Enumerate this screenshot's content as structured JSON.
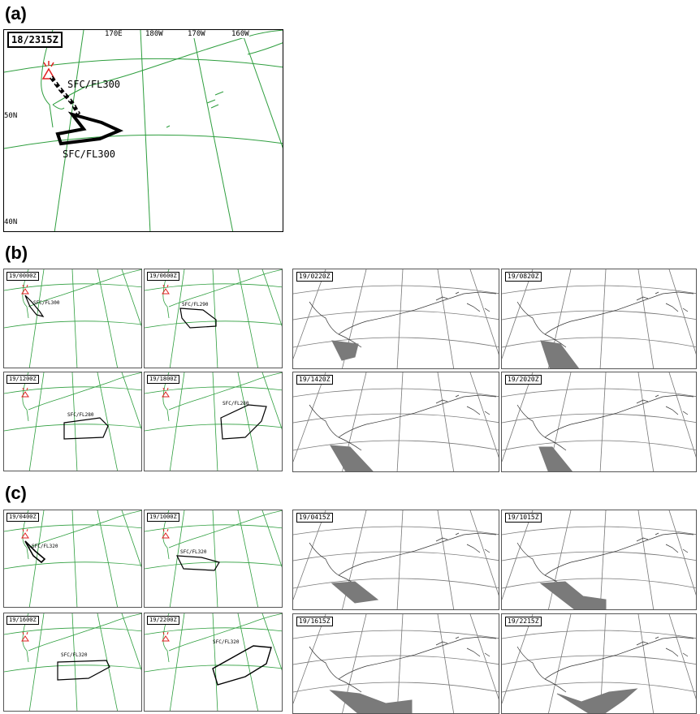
{
  "panel_labels": {
    "a": "(a)",
    "b": "(b)",
    "c": "(c)"
  },
  "map_a": {
    "time": "18/2315Z",
    "grid_labels": {
      "lon1": "170E",
      "lon2": "180W",
      "lon3": "170W",
      "lon4": "160W",
      "lat1": "50N",
      "lat2": "40N"
    },
    "layers": [
      "SFC/FL300",
      "SFC/FL300"
    ]
  },
  "panels_b_green": [
    {
      "time": "19/0000Z",
      "layer": "SFC/FL300"
    },
    {
      "time": "19/0600Z",
      "layer": "SFC/FL290"
    },
    {
      "time": "19/1200Z",
      "layer": "SFC/FL280"
    },
    {
      "time": "19/1800Z",
      "layer": "SFC/FL280"
    }
  ],
  "panels_b_gray": [
    {
      "time": "19/0220Z"
    },
    {
      "time": "19/0820Z"
    },
    {
      "time": "19/1420Z"
    },
    {
      "time": "19/2020Z"
    }
  ],
  "panels_c_green": [
    {
      "time": "19/0400Z",
      "layer": "SFC/FL320"
    },
    {
      "time": "19/1000Z",
      "layer": "SFC/FL320"
    },
    {
      "time": "19/1600Z",
      "layer": "SFC/FL320"
    },
    {
      "time": "19/2200Z",
      "layer": "SFC/FL320"
    }
  ],
  "panels_c_gray": [
    {
      "time": "19/0415Z"
    },
    {
      "time": "19/1015Z"
    },
    {
      "time": "19/1615Z"
    },
    {
      "time": "19/2215Z"
    }
  ],
  "colors": {
    "grid_green": "#2e9e3e",
    "volcano_red": "#e02020",
    "ash_gray": "#7a7a7a",
    "outline": "#000000"
  }
}
